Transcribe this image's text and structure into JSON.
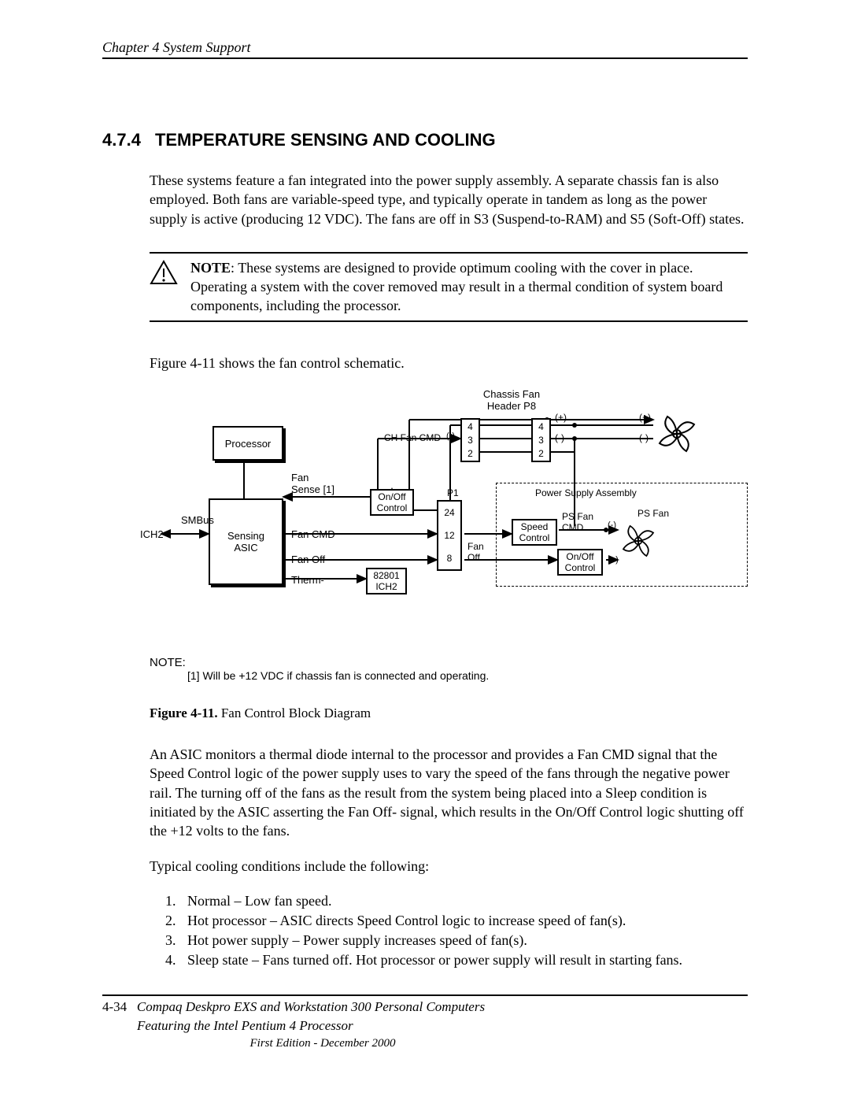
{
  "header": {
    "running": "Chapter 4  System Support"
  },
  "section": {
    "number": "4.7.4",
    "title": "TEMPERATURE SENSING AND COOLING"
  },
  "paras": {
    "p1": "These systems feature a fan integrated into the power supply assembly.  A separate chassis fan is also employed. Both fans are variable-speed type, and typically operate in tandem as long as the power supply is active (producing 12 VDC). The fans are off in S3 (Suspend-to-RAM) and S5 (Soft-Off) states.",
    "note_label": "NOTE",
    "note_body": ": These systems are designed to provide optimum cooling with the cover in place. Operating a system with the cover removed may result in a thermal condition of system board components, including the processor.",
    "p2": "Figure 4-11 shows the fan control schematic.",
    "p3": "An ASIC monitors a thermal diode internal to the processor and provides a Fan CMD signal that the Speed Control logic of the power supply uses to vary the speed of the fans through the negative power rail. The turning off of the fans as the result from the system being placed into a Sleep condition is initiated by the ASIC asserting the Fan Off- signal, which results in the On/Off Control logic shutting off the +12 volts to the fans.",
    "p4": "Typical cooling conditions include the following:"
  },
  "diagram": {
    "labels": {
      "chassis_header": "Chassis Fan\nHeader P8",
      "processor": "Processor",
      "asic": "Sensing\nASIC",
      "ich2": "ICH2",
      "smbus": "SMBus",
      "fan_sense": "Fan\nSense [1]",
      "fan_cmd": "Fan CMD",
      "fan_off": "Fan Off-",
      "therm": "Therm-",
      "onoff_ctrl": "On/Off\nControl",
      "chip_82801": "82801\nICH2",
      "p1": "P1",
      "pins_24": "24",
      "pins_12": "12",
      "pins_8": "8",
      "pins_4a": "4",
      "pins_3a": "3",
      "pins_2a": "2",
      "pins_4b": "4",
      "pins_3b": "3",
      "pins_2b": "2",
      "ch_fan_cmd": "CH Fan CMD",
      "fan_off_right": "Fan\nOff",
      "psu": "Power Supply Assembly",
      "speed_ctrl": "Speed\nControl",
      "ps_fan_cmd": "PS Fan\nCMD",
      "ps_fan": "PS Fan",
      "onoff_ctrl2": "On/Off\nControl",
      "plus": "(+)",
      "minus": "(-)"
    }
  },
  "diagram_note": {
    "heading": "NOTE:",
    "body": "[1] Will be +12 VDC if chassis fan is connected and operating."
  },
  "figure": {
    "label": "Figure 4-11.",
    "caption": "  Fan Control Block Diagram"
  },
  "conditions": {
    "c1": "Normal – Low fan speed.",
    "c2": "Hot processor – ASIC directs Speed Control logic to increase speed of fan(s).",
    "c3": "Hot power supply – Power supply increases speed of fan(s).",
    "c4": "Sleep state – Fans turned off. Hot processor or power supply will result in starting fans."
  },
  "footer": {
    "page": "4-34",
    "title": "Compaq Deskpro EXS and Workstation 300 Personal Computers",
    "subtitle": "Featuring the Intel Pentium 4 Processor",
    "edition": "First Edition - December 2000"
  },
  "colors": {
    "text": "#000000",
    "bg": "#ffffff"
  }
}
